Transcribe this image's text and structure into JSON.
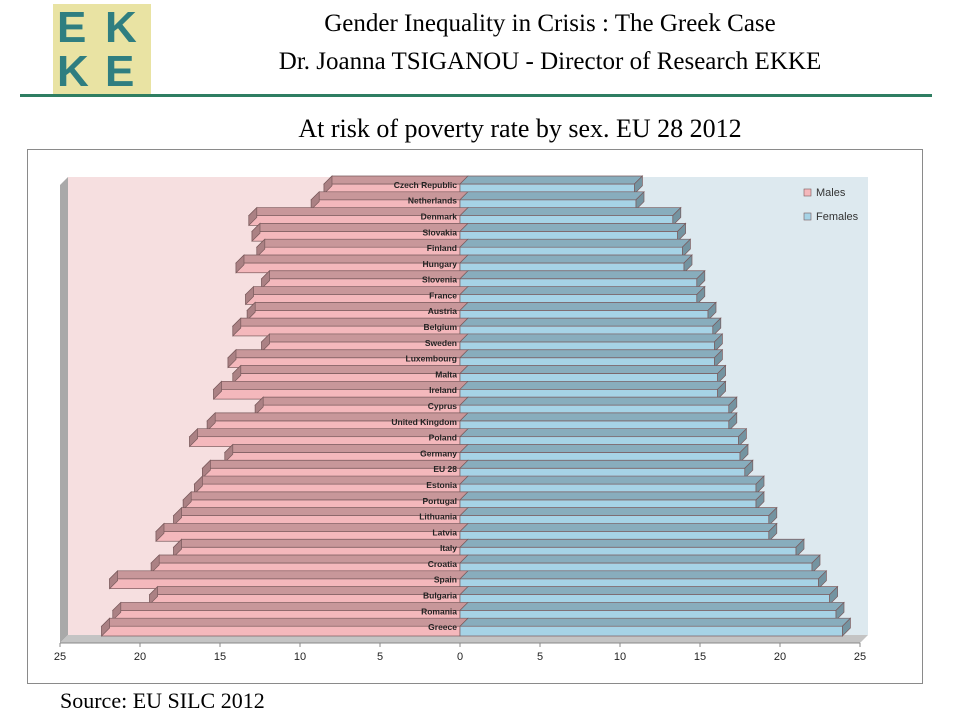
{
  "header": {
    "logo_letters": [
      "E",
      "K",
      "K",
      "E"
    ],
    "title_line1": "Gender Inequality in Crisis : The Greek Case",
    "title_line2": "Dr. Joanna TSIGANOU - Director of Research EKKE"
  },
  "colors": {
    "males_bar": "#f4b8bc",
    "females_bar": "#a6d3e6",
    "plot_bg_left": "#f6dfe0",
    "plot_bg_right": "#dde9ef",
    "accent_rule": "#2f7e62",
    "logo_bg": "#e9e3a3",
    "logo_text": "#2f7e80"
  },
  "chart_data": {
    "type": "bar",
    "orientation": "horizontal",
    "title": "At risk of poverty rate by sex. EU 28 2012",
    "categories": [
      "Czech Republic",
      "Netherlands",
      "Denmark",
      "Slovakia",
      "Finland",
      "Hungary",
      "Slovenia",
      "France",
      "Austria",
      "Belgium",
      "Sweden",
      "Luxembourg",
      "Malta",
      "Ireland",
      "Cyprus",
      "United Kingdom",
      "Poland",
      "Germany",
      "EU 28",
      "Estonia",
      "Portugal",
      "Lithuania",
      "Latvia",
      "Italy",
      "Croatia",
      "Spain",
      "Bulgaria",
      "Romania",
      "Greece"
    ],
    "series": [
      {
        "name": "Males",
        "values": [
          8.5,
          9.3,
          13.2,
          13.0,
          12.7,
          14.0,
          12.4,
          13.4,
          13.3,
          14.2,
          12.4,
          14.5,
          14.2,
          15.4,
          12.8,
          15.8,
          16.9,
          14.7,
          16.1,
          16.6,
          17.3,
          17.9,
          19.0,
          17.9,
          19.3,
          21.9,
          19.4,
          21.7,
          22.4
        ]
      },
      {
        "name": "Females",
        "values": [
          10.9,
          11.0,
          13.3,
          13.6,
          13.9,
          14.0,
          14.8,
          14.8,
          15.5,
          15.8,
          15.9,
          15.9,
          16.1,
          16.1,
          16.8,
          16.8,
          17.4,
          17.5,
          17.8,
          18.5,
          18.5,
          19.3,
          19.3,
          21.0,
          22.0,
          22.4,
          23.1,
          23.5,
          23.9
        ]
      }
    ],
    "x_ticks": [
      "25",
      "20",
      "15",
      "10",
      "5",
      "0",
      "5",
      "10",
      "15",
      "20",
      "25"
    ],
    "xlim": [
      -25,
      25
    ],
    "legend": [
      "Males",
      "Females"
    ],
    "legend_position": "top-right",
    "grid": false
  },
  "footer": {
    "source": "Source: EU SILC 2012"
  }
}
